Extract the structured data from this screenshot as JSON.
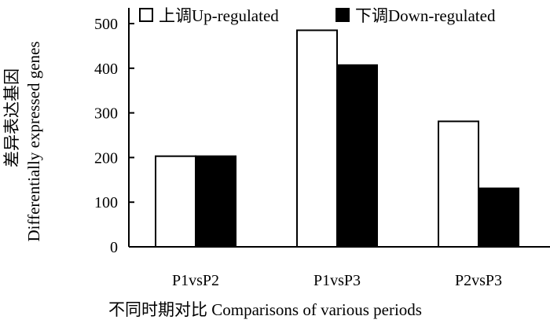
{
  "chart_data": {
    "type": "bar",
    "categories": [
      "P1vsP2",
      "P1vsP3",
      "P2vsP3"
    ],
    "series": [
      {
        "name": "上调Up-regulated",
        "values": [
          203,
          485,
          281
        ],
        "fill": "#ffffff"
      },
      {
        "name": "下调Down-regulated",
        "values": [
          203,
          407,
          131
        ],
        "fill": "#000000"
      }
    ],
    "ylim": [
      0,
      500
    ],
    "yticks": [
      0,
      100,
      200,
      300,
      400,
      500
    ],
    "xlabel": "不同时期对比 Comparisons of various periods",
    "ylabel_cn": "差异表达基因",
    "ylabel_en": "Differentially expressed genes",
    "grid": false,
    "legend_position": "top"
  }
}
